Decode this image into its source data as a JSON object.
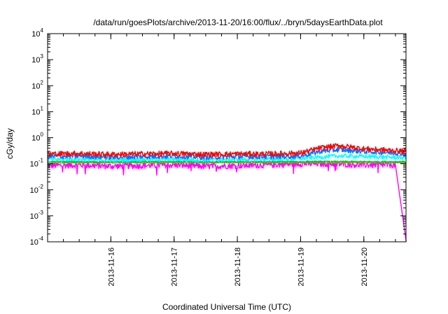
{
  "chart_data": {
    "type": "line",
    "title": "/data/run/goesPlots/archive/2013-11-20/16:00/flux/../bryn/5daysEarthData.plot",
    "xlabel": "Coordinated Universal Time (UTC)",
    "ylabel": "cGy/day",
    "x_range": [
      "2013-11-15 00:00",
      "2013-11-20 16:00"
    ],
    "x_ticks": [
      {
        "label": "2013-11-16",
        "value": "2013-11-16"
      },
      {
        "label": "2013-11-17",
        "value": "2013-11-17"
      },
      {
        "label": "2013-11-18",
        "value": "2013-11-18"
      },
      {
        "label": "2013-11-19",
        "value": "2013-11-19"
      },
      {
        "label": "2013-11-20",
        "value": "2013-11-20"
      }
    ],
    "y_scale": "log",
    "ylim": [
      0.0001,
      10000
    ],
    "y_ticks": [
      {
        "base": "10",
        "exp": "4",
        "value": 10000
      },
      {
        "base": "10",
        "exp": "3",
        "value": 1000
      },
      {
        "base": "10",
        "exp": "2",
        "value": 100
      },
      {
        "base": "10",
        "exp": "1",
        "value": 10
      },
      {
        "base": "10",
        "exp": "0",
        "value": 1
      },
      {
        "base": "10",
        "exp": "-1",
        "value": 0.1
      },
      {
        "base": "10",
        "exp": "-2",
        "value": 0.01
      },
      {
        "base": "10",
        "exp": "-3",
        "value": 0.001
      },
      {
        "base": "10",
        "exp": "-4",
        "value": 0.0001
      }
    ],
    "grid": false,
    "legend": "none",
    "series": [
      {
        "color": "#ff00ff",
        "values": [
          [
            0,
            0.085
          ],
          [
            0.5,
            0.09
          ],
          [
            1,
            0.08
          ],
          [
            1.5,
            0.085
          ],
          [
            2,
            0.09
          ],
          [
            2.5,
            0.08
          ],
          [
            3,
            0.085
          ],
          [
            3.5,
            0.09
          ],
          [
            4,
            0.1
          ],
          [
            4.5,
            0.1
          ],
          [
            5,
            0.09
          ],
          [
            5.5,
            0.09
          ],
          [
            5.67,
            0.0001
          ]
        ]
      },
      {
        "color": "#c08040",
        "values": [
          [
            0,
            0.11
          ],
          [
            1,
            0.11
          ],
          [
            2,
            0.11
          ],
          [
            3,
            0.11
          ],
          [
            4,
            0.11
          ],
          [
            5,
            0.11
          ],
          [
            5.67,
            0.11
          ]
        ]
      },
      {
        "color": "#00cc00",
        "values": [
          [
            0,
            0.12
          ],
          [
            1,
            0.12
          ],
          [
            2,
            0.12
          ],
          [
            3,
            0.12
          ],
          [
            4,
            0.12
          ],
          [
            5,
            0.12
          ],
          [
            5.67,
            0.12
          ]
        ]
      },
      {
        "color": "#00ffff",
        "values": [
          [
            0,
            0.15
          ],
          [
            0.5,
            0.15
          ],
          [
            1,
            0.14
          ],
          [
            1.5,
            0.15
          ],
          [
            2,
            0.15
          ],
          [
            2.5,
            0.14
          ],
          [
            3,
            0.15
          ],
          [
            3.5,
            0.15
          ],
          [
            4,
            0.16
          ],
          [
            4.3,
            0.18
          ],
          [
            4.6,
            0.2
          ],
          [
            5,
            0.19
          ],
          [
            5.67,
            0.17
          ]
        ]
      },
      {
        "color": "#0070ff",
        "values": [
          [
            0,
            0.19
          ],
          [
            0.5,
            0.2
          ],
          [
            1,
            0.18
          ],
          [
            1.5,
            0.19
          ],
          [
            2,
            0.2
          ],
          [
            2.5,
            0.18
          ],
          [
            3,
            0.19
          ],
          [
            3.5,
            0.19
          ],
          [
            4,
            0.2
          ],
          [
            4.3,
            0.3
          ],
          [
            4.6,
            0.35
          ],
          [
            5,
            0.3
          ],
          [
            5.67,
            0.25
          ]
        ]
      },
      {
        "color": "#ff0000",
        "values": [
          [
            0,
            0.24
          ],
          [
            0.5,
            0.25
          ],
          [
            1,
            0.23
          ],
          [
            1.5,
            0.24
          ],
          [
            2,
            0.25
          ],
          [
            2.5,
            0.23
          ],
          [
            3,
            0.24
          ],
          [
            3.5,
            0.24
          ],
          [
            4,
            0.26
          ],
          [
            4.3,
            0.4
          ],
          [
            4.6,
            0.5
          ],
          [
            5,
            0.38
          ],
          [
            5.67,
            0.3
          ]
        ]
      }
    ]
  }
}
